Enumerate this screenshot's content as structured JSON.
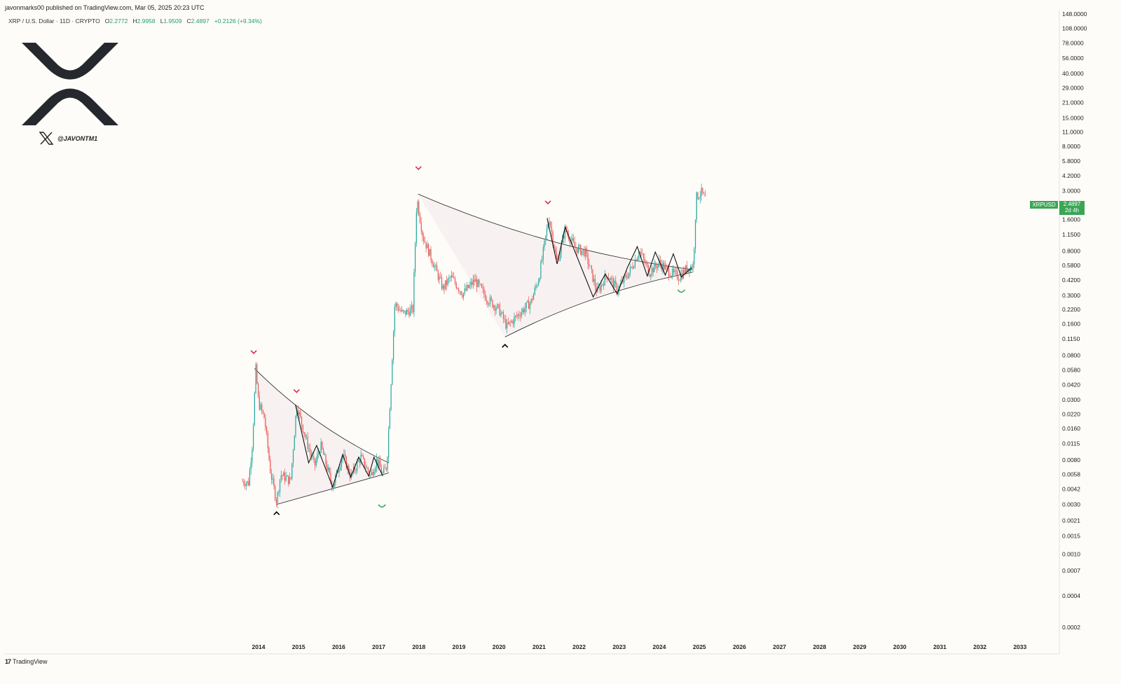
{
  "header": {
    "published": "javonmarks00 published on TradingView.com, Mar 05, 2025 20:23 UTC"
  },
  "legend": {
    "symbol": "XRP / U.S. Dollar · 11D · CRYPTO",
    "o_label": "O",
    "o_value": "2.2772",
    "h_label": "H",
    "h_value": "2.9958",
    "l_label": "L",
    "l_value": "1.9509",
    "c_label": "C",
    "c_value": "2.4897",
    "change": "+0.2126 (+9.34%)"
  },
  "watermark": {
    "logo_icon": "xrp-logo-icon",
    "x_icon": "x-twitter-icon",
    "handle": "@JAVONTM1"
  },
  "footer": {
    "brand": "TradingView",
    "brand_icon": "tradingview-logo-icon"
  },
  "price_badge": {
    "symbol": "XRPUSD",
    "price": "2.4897",
    "countdown": "2d 4h"
  },
  "colors": {
    "background": "#fdfcf8",
    "candle_up": "#26a69a",
    "candle_down": "#ef5350",
    "badge": "#3aa655",
    "arrow_top": "#e0284a",
    "arrow_bottom": "#000000",
    "arrow_breakout": "#3aa655"
  },
  "chart_data": {
    "type": "candlestick",
    "title": "XRP / U.S. Dollar · 11D · CRYPTO",
    "y_scale": "log",
    "ylim": [
      0.0002,
      148
    ],
    "y_ticks": [
      "148.0000",
      "108.0000",
      "78.0000",
      "56.0000",
      "40.0000",
      "29.0000",
      "21.0000",
      "15.0000",
      "11.0000",
      "8.0000",
      "5.8000",
      "4.2000",
      "3.0000",
      "1.6000",
      "1.1500",
      "0.8000",
      "0.5800",
      "0.4200",
      "0.3000",
      "0.2200",
      "0.1600",
      "0.1150",
      "0.0800",
      "0.0580",
      "0.0420",
      "0.0300",
      "0.0220",
      "0.0160",
      "0.0115",
      "0.0080",
      "0.0058",
      "0.0042",
      "0.0030",
      "0.0021",
      "0.0015",
      "0.0010",
      "0.0007",
      "0.0004",
      "0.0002"
    ],
    "x_ticks": [
      "2014",
      "2015",
      "2016",
      "2017",
      "2018",
      "2019",
      "2020",
      "2021",
      "2022",
      "2023",
      "2024",
      "2025",
      "2026",
      "2027",
      "2028",
      "2029",
      "2030",
      "2031",
      "2032",
      "2033"
    ],
    "price_path": [
      {
        "t": 2013.6,
        "p": 0.005
      },
      {
        "t": 2013.75,
        "p": 0.0048
      },
      {
        "t": 2013.85,
        "p": 0.012
      },
      {
        "t": 2013.93,
        "p": 0.06
      },
      {
        "t": 2014.0,
        "p": 0.028
      },
      {
        "t": 2014.15,
        "p": 0.02
      },
      {
        "t": 2014.3,
        "p": 0.006
      },
      {
        "t": 2014.45,
        "p": 0.0032
      },
      {
        "t": 2014.55,
        "p": 0.0058
      },
      {
        "t": 2014.8,
        "p": 0.005
      },
      {
        "t": 2014.95,
        "p": 0.027
      },
      {
        "t": 2015.2,
        "p": 0.012
      },
      {
        "t": 2015.4,
        "p": 0.007
      },
      {
        "t": 2015.55,
        "p": 0.011
      },
      {
        "t": 2015.85,
        "p": 0.0044
      },
      {
        "t": 2016.1,
        "p": 0.009
      },
      {
        "t": 2016.3,
        "p": 0.0055
      },
      {
        "t": 2016.55,
        "p": 0.0085
      },
      {
        "t": 2016.8,
        "p": 0.0056
      },
      {
        "t": 2016.95,
        "p": 0.008
      },
      {
        "t": 2017.1,
        "p": 0.0058
      },
      {
        "t": 2017.2,
        "p": 0.007
      },
      {
        "t": 2017.3,
        "p": 0.04
      },
      {
        "t": 2017.4,
        "p": 0.25
      },
      {
        "t": 2017.6,
        "p": 0.2
      },
      {
        "t": 2017.85,
        "p": 0.22
      },
      {
        "t": 2017.95,
        "p": 2.6
      },
      {
        "t": 2018.1,
        "p": 1.1
      },
      {
        "t": 2018.3,
        "p": 0.7
      },
      {
        "t": 2018.6,
        "p": 0.35
      },
      {
        "t": 2018.8,
        "p": 0.45
      },
      {
        "t": 2019.1,
        "p": 0.31
      },
      {
        "t": 2019.4,
        "p": 0.42
      },
      {
        "t": 2019.7,
        "p": 0.28
      },
      {
        "t": 2020.0,
        "p": 0.22
      },
      {
        "t": 2020.2,
        "p": 0.15
      },
      {
        "t": 2020.5,
        "p": 0.2
      },
      {
        "t": 2020.8,
        "p": 0.26
      },
      {
        "t": 2021.0,
        "p": 0.45
      },
      {
        "t": 2021.25,
        "p": 1.7
      },
      {
        "t": 2021.45,
        "p": 0.6
      },
      {
        "t": 2021.65,
        "p": 1.3
      },
      {
        "t": 2021.9,
        "p": 0.85
      },
      {
        "t": 2022.15,
        "p": 0.78
      },
      {
        "t": 2022.45,
        "p": 0.32
      },
      {
        "t": 2022.7,
        "p": 0.48
      },
      {
        "t": 2022.95,
        "p": 0.34
      },
      {
        "t": 2023.25,
        "p": 0.5
      },
      {
        "t": 2023.5,
        "p": 0.8
      },
      {
        "t": 2023.75,
        "p": 0.5
      },
      {
        "t": 2024.0,
        "p": 0.62
      },
      {
        "t": 2024.25,
        "p": 0.5
      },
      {
        "t": 2024.5,
        "p": 0.45
      },
      {
        "t": 2024.7,
        "p": 0.55
      },
      {
        "t": 2024.85,
        "p": 0.58
      },
      {
        "t": 2024.92,
        "p": 2.6
      },
      {
        "t": 2025.05,
        "p": 2.9
      },
      {
        "t": 2025.15,
        "p": 2.49
      }
    ],
    "annotations": {
      "top_arrows": [
        {
          "t": 2013.88,
          "p": 0.085
        },
        {
          "t": 2014.95,
          "p": 0.036
        },
        {
          "t": 2017.99,
          "p": 4.9
        },
        {
          "t": 2021.22,
          "p": 2.3
        }
      ],
      "bottom_arrows": [
        {
          "t": 2014.45,
          "p": 0.0025
        },
        {
          "t": 2020.15,
          "p": 0.1
        }
      ],
      "breakout_arrows": [
        {
          "t": 2017.08,
          "p": 0.0029
        },
        {
          "t": 2024.55,
          "p": 0.33
        }
      ],
      "pattern_lines": [
        {
          "from": {
            "t": 2013.9,
            "p": 0.06
          },
          "to": {
            "t": 2017.25,
            "p": 0.0075
          },
          "curve": 0.35
        },
        {
          "from": {
            "t": 2014.45,
            "p": 0.003
          },
          "to": {
            "t": 2017.25,
            "p": 0.006
          },
          "curve": 0.0
        },
        {
          "from": {
            "t": 2017.98,
            "p": 2.8
          },
          "to": {
            "t": 2024.83,
            "p": 0.53
          },
          "curve": 0.28
        },
        {
          "from": {
            "t": 2020.15,
            "p": 0.12
          },
          "to": {
            "t": 2024.83,
            "p": 0.5
          },
          "curve": -0.28
        }
      ],
      "zigzag_1": [
        {
          "t": 2014.92,
          "p": 0.027
        },
        {
          "t": 2015.25,
          "p": 0.0075
        },
        {
          "t": 2015.45,
          "p": 0.011
        },
        {
          "t": 2015.85,
          "p": 0.0044
        },
        {
          "t": 2016.1,
          "p": 0.009
        },
        {
          "t": 2016.3,
          "p": 0.0055
        },
        {
          "t": 2016.5,
          "p": 0.0085
        },
        {
          "t": 2016.75,
          "p": 0.0056
        },
        {
          "t": 2016.88,
          "p": 0.0085
        },
        {
          "t": 2017.1,
          "p": 0.0056
        }
      ],
      "zigzag_2": [
        {
          "t": 2021.2,
          "p": 1.65
        },
        {
          "t": 2021.45,
          "p": 0.6
        },
        {
          "t": 2021.65,
          "p": 1.35
        },
        {
          "t": 2022.35,
          "p": 0.29
        },
        {
          "t": 2022.65,
          "p": 0.48
        },
        {
          "t": 2022.95,
          "p": 0.31
        },
        {
          "t": 2023.2,
          "p": 0.55
        },
        {
          "t": 2023.45,
          "p": 0.88
        },
        {
          "t": 2023.7,
          "p": 0.46
        },
        {
          "t": 2023.9,
          "p": 0.78
        },
        {
          "t": 2024.15,
          "p": 0.47
        },
        {
          "t": 2024.35,
          "p": 0.75
        },
        {
          "t": 2024.55,
          "p": 0.45
        },
        {
          "t": 2024.8,
          "p": 0.55
        }
      ]
    }
  }
}
